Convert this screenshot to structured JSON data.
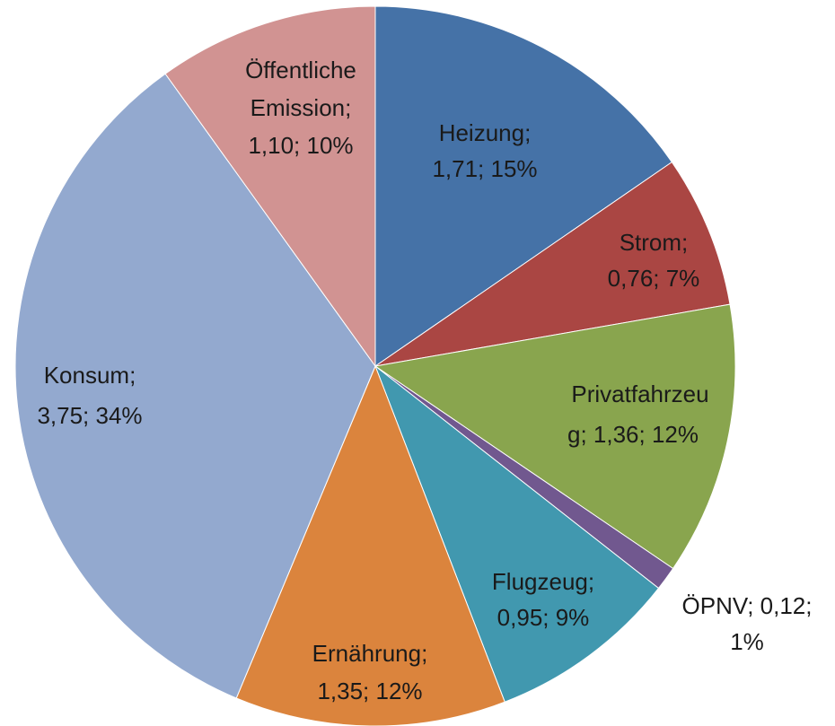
{
  "chart_data": {
    "type": "pie",
    "values": [
      1.71,
      0.76,
      1.36,
      0.12,
      0.95,
      1.35,
      3.75,
      1.1
    ],
    "labels": [
      [
        "Heizung;",
        "1,71; 15%"
      ],
      [
        "Strom;",
        "0,76; 7%"
      ],
      [
        "Privatfahrzeu",
        "g; 1,36; 12%"
      ],
      [
        "ÖPNV; 0,12;",
        "1%"
      ],
      [
        "Flugzeug;",
        "0,95; 9%"
      ],
      [
        "Ernährung;",
        "1,35; 12%"
      ],
      [
        "Konsum;",
        "3,75; 34%"
      ],
      [
        "Öffentliche",
        "Emission;",
        "1,10; 10%"
      ]
    ],
    "colors": [
      "#4572a7",
      "#aa4643",
      "#89a54e",
      "#71588f",
      "#4198af",
      "#db843d",
      "#93a9cf",
      "#d19392"
    ]
  }
}
